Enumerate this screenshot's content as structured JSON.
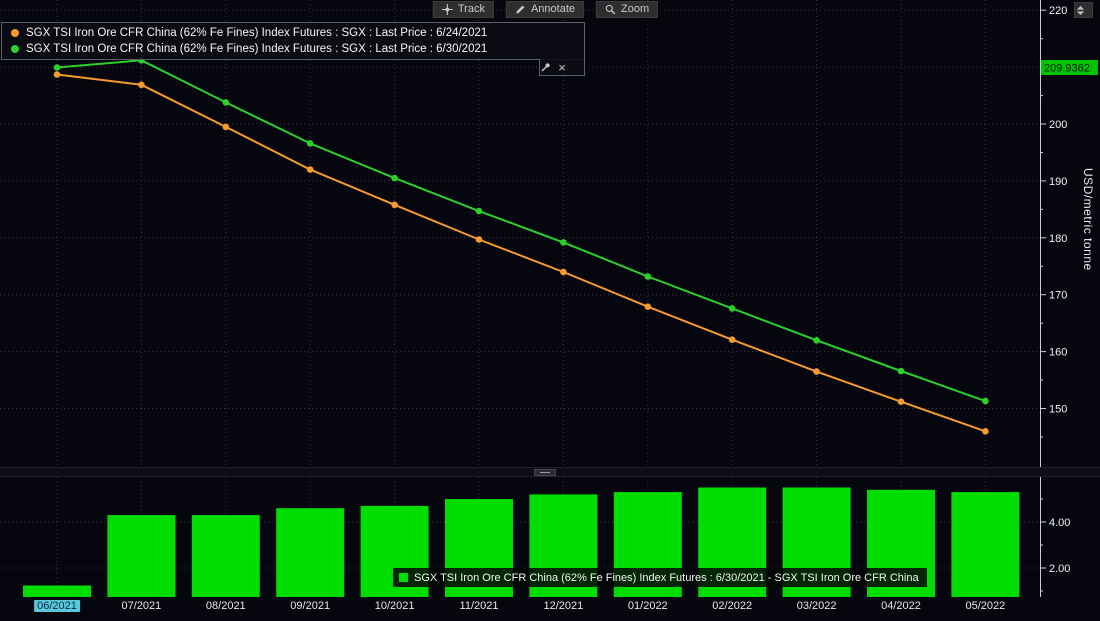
{
  "colors": {
    "background": "#06060f",
    "grid": "#333a4b",
    "axis": "#c9ced8",
    "orange_series": "#f79a2d",
    "green_series": "#2bd02b",
    "bar_green": "#00dd00",
    "marker_bg": "#00c300",
    "marker_text": "#001400",
    "x_highlight_bg": "#5ac8dc",
    "x_highlight_text": "#06303a"
  },
  "toolbar": {
    "buttons": [
      {
        "label": "Track",
        "icon": "crosshair-move-icon"
      },
      {
        "label": "Annotate",
        "icon": "pencil-icon"
      },
      {
        "label": "Zoom",
        "icon": "magnifier-icon"
      }
    ]
  },
  "icons": {
    "top_right": "expand-panel-icon",
    "legend_pin": "pushpin-icon",
    "legend_close": "close-x-icon",
    "divider": "drag-handle-icon"
  },
  "legend": {
    "items": [
      {
        "marker_color": "#f79a2d",
        "label": "SGX TSI Iron Ore CFR China (62% Fe Fines) Index Futures : SGX : Last Price : 6/24/2021"
      },
      {
        "marker_color": "#2bd02b",
        "label": "SGX TSI Iron Ore CFR China (62% Fe Fines) Index Futures : SGX : Last Price : 6/30/2021"
      }
    ]
  },
  "y_axis": {
    "title": "USD/metric tonne"
  },
  "x_axis": {
    "labels": [
      "06/2021",
      "07/2021",
      "08/2021",
      "09/2021",
      "10/2021",
      "11/2021",
      "12/2021",
      "01/2022",
      "02/2022",
      "03/2022",
      "04/2022",
      "05/2022"
    ],
    "highlighted_label": "06/2021",
    "highlighted_index": 0
  },
  "chart_data": [
    {
      "type": "line",
      "title": "",
      "x": [
        "06/2021",
        "07/2021",
        "08/2021",
        "09/2021",
        "10/2021",
        "11/2021",
        "12/2021",
        "01/2022",
        "02/2022",
        "03/2022",
        "04/2022",
        "05/2022"
      ],
      "series": [
        {
          "name": "SGX TSI Iron Ore CFR China (62% Fe Fines) Index Futures : SGX : Last Price : 6/24/2021",
          "color": "#f79a2d",
          "values": [
            208.7,
            206.9,
            199.5,
            192.0,
            185.8,
            179.7,
            174.0,
            167.9,
            162.1,
            156.5,
            151.2,
            146.0
          ]
        },
        {
          "name": "SGX TSI Iron Ore CFR China (62% Fe Fines) Index Futures : SGX : Last Price : 6/30/2021",
          "color": "#2bd02b",
          "values": [
            209.9362,
            211.2,
            203.8,
            196.6,
            190.5,
            184.7,
            179.2,
            173.2,
            167.6,
            162.0,
            156.6,
            151.3
          ]
        }
      ],
      "ylabel": "USD/metric tonne",
      "ylim": [
        139.2,
        221.8
      ],
      "yticks": [
        150,
        160,
        170,
        180,
        190,
        200,
        210,
        220
      ],
      "grid": true,
      "legend_position": "top-left",
      "last_price_marker": {
        "value": 209.9362,
        "label": "209.9362"
      }
    },
    {
      "type": "bar",
      "title": "",
      "categories": [
        "06/2021",
        "07/2021",
        "08/2021",
        "09/2021",
        "10/2021",
        "11/2021",
        "12/2021",
        "01/2022",
        "02/2022",
        "03/2022",
        "04/2022",
        "05/2022"
      ],
      "values": [
        1.24,
        4.3,
        4.3,
        4.6,
        4.7,
        5.0,
        5.2,
        5.3,
        5.5,
        5.5,
        5.4,
        5.3
      ],
      "color": "#00dd00",
      "ylim": [
        0.7,
        6.0
      ],
      "yticks": [
        2,
        4
      ],
      "ytick_labels": [
        "2.00",
        "4.00"
      ],
      "legend": "SGX TSI Iron Ore CFR China (62% Fe Fines) Index Futures : 6/30/2021 - SGX TSI Iron Ore CFR China"
    }
  ]
}
